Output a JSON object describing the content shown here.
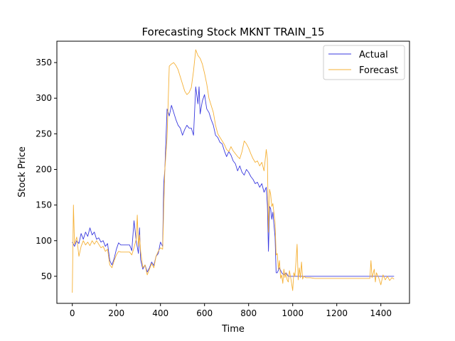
{
  "chart_data": {
    "type": "line",
    "title": "Forecasting Stock MKNT TRAIN_15",
    "xlabel": "Time",
    "ylabel": "Stock Price",
    "xlim": [
      -70,
      1530
    ],
    "ylim": [
      12,
      380
    ],
    "xticks": [
      0,
      200,
      400,
      600,
      800,
      1000,
      1200,
      1400
    ],
    "yticks": [
      50,
      100,
      150,
      200,
      250,
      300,
      350
    ],
    "grid": false,
    "legend_position": "top-right",
    "series": [
      {
        "name": "Actual",
        "color": "#3a3adf",
        "points": [
          [
            0,
            98
          ],
          [
            10,
            92
          ],
          [
            20,
            100
          ],
          [
            30,
            96
          ],
          [
            40,
            110
          ],
          [
            50,
            102
          ],
          [
            60,
            112
          ],
          [
            70,
            106
          ],
          [
            80,
            118
          ],
          [
            90,
            108
          ],
          [
            100,
            112
          ],
          [
            110,
            102
          ],
          [
            120,
            104
          ],
          [
            130,
            98
          ],
          [
            140,
            100
          ],
          [
            150,
            92
          ],
          [
            160,
            96
          ],
          [
            170,
            72
          ],
          [
            180,
            66
          ],
          [
            190,
            75
          ],
          [
            200,
            88
          ],
          [
            210,
            97
          ],
          [
            220,
            94
          ],
          [
            240,
            94
          ],
          [
            260,
            94
          ],
          [
            270,
            86
          ],
          [
            280,
            128
          ],
          [
            290,
            100
          ],
          [
            300,
            82
          ],
          [
            305,
            118
          ],
          [
            310,
            73
          ],
          [
            320,
            60
          ],
          [
            330,
            66
          ],
          [
            340,
            56
          ],
          [
            350,
            62
          ],
          [
            360,
            70
          ],
          [
            370,
            65
          ],
          [
            380,
            78
          ],
          [
            390,
            82
          ],
          [
            400,
            98
          ],
          [
            410,
            92
          ],
          [
            415,
            180
          ],
          [
            420,
            200
          ],
          [
            430,
            285
          ],
          [
            440,
            275
          ],
          [
            450,
            290
          ],
          [
            460,
            280
          ],
          [
            470,
            270
          ],
          [
            480,
            262
          ],
          [
            490,
            258
          ],
          [
            500,
            248
          ],
          [
            510,
            256
          ],
          [
            520,
            262
          ],
          [
            530,
            258
          ],
          [
            540,
            258
          ],
          [
            550,
            248
          ],
          [
            560,
            316
          ],
          [
            570,
            292
          ],
          [
            575,
            316
          ],
          [
            580,
            278
          ],
          [
            590,
            296
          ],
          [
            600,
            305
          ],
          [
            610,
            285
          ],
          [
            620,
            280
          ],
          [
            630,
            270
          ],
          [
            640,
            262
          ],
          [
            650,
            248
          ],
          [
            660,
            245
          ],
          [
            670,
            238
          ],
          [
            680,
            236
          ],
          [
            690,
            226
          ],
          [
            700,
            218
          ],
          [
            710,
            225
          ],
          [
            720,
            220
          ],
          [
            730,
            212
          ],
          [
            740,
            208
          ],
          [
            750,
            198
          ],
          [
            760,
            205
          ],
          [
            770,
            196
          ],
          [
            780,
            192
          ],
          [
            790,
            200
          ],
          [
            800,
            196
          ],
          [
            810,
            190
          ],
          [
            820,
            186
          ],
          [
            830,
            180
          ],
          [
            840,
            182
          ],
          [
            850,
            175
          ],
          [
            860,
            180
          ],
          [
            870,
            168
          ],
          [
            880,
            175
          ],
          [
            885,
            150
          ],
          [
            890,
            85
          ],
          [
            895,
            148
          ],
          [
            900,
            145
          ],
          [
            905,
            130
          ],
          [
            910,
            140
          ],
          [
            920,
            105
          ],
          [
            925,
            55
          ],
          [
            930,
            55
          ],
          [
            940,
            62
          ],
          [
            950,
            55
          ],
          [
            960,
            52
          ],
          [
            970,
            55
          ],
          [
            980,
            50
          ],
          [
            1000,
            50
          ],
          [
            1100,
            50
          ],
          [
            1200,
            50
          ],
          [
            1300,
            50
          ],
          [
            1400,
            50
          ],
          [
            1460,
            50
          ]
        ]
      },
      {
        "name": "Forecast",
        "color": "#f5b035",
        "points": [
          [
            0,
            27
          ],
          [
            5,
            150
          ],
          [
            10,
            95
          ],
          [
            20,
            105
          ],
          [
            30,
            78
          ],
          [
            40,
            92
          ],
          [
            50,
            100
          ],
          [
            60,
            94
          ],
          [
            70,
            98
          ],
          [
            80,
            93
          ],
          [
            90,
            100
          ],
          [
            100,
            95
          ],
          [
            110,
            100
          ],
          [
            120,
            95
          ],
          [
            130,
            90
          ],
          [
            140,
            92
          ],
          [
            150,
            85
          ],
          [
            160,
            88
          ],
          [
            170,
            66
          ],
          [
            180,
            62
          ],
          [
            190,
            72
          ],
          [
            200,
            80
          ],
          [
            210,
            85
          ],
          [
            220,
            84
          ],
          [
            240,
            84
          ],
          [
            260,
            84
          ],
          [
            270,
            80
          ],
          [
            280,
            90
          ],
          [
            290,
            102
          ],
          [
            295,
            136
          ],
          [
            300,
            92
          ],
          [
            305,
            108
          ],
          [
            310,
            85
          ],
          [
            320,
            62
          ],
          [
            330,
            66
          ],
          [
            340,
            52
          ],
          [
            350,
            60
          ],
          [
            360,
            68
          ],
          [
            370,
            62
          ],
          [
            380,
            78
          ],
          [
            390,
            85
          ],
          [
            400,
            90
          ],
          [
            410,
            88
          ],
          [
            415,
            145
          ],
          [
            420,
            200
          ],
          [
            430,
            245
          ],
          [
            440,
            345
          ],
          [
            450,
            348
          ],
          [
            460,
            350
          ],
          [
            470,
            346
          ],
          [
            480,
            340
          ],
          [
            490,
            330
          ],
          [
            500,
            320
          ],
          [
            510,
            310
          ],
          [
            520,
            305
          ],
          [
            530,
            308
          ],
          [
            540,
            315
          ],
          [
            550,
            338
          ],
          [
            560,
            368
          ],
          [
            570,
            360
          ],
          [
            580,
            356
          ],
          [
            590,
            348
          ],
          [
            600,
            335
          ],
          [
            610,
            320
          ],
          [
            620,
            300
          ],
          [
            630,
            290
          ],
          [
            640,
            280
          ],
          [
            650,
            262
          ],
          [
            660,
            250
          ],
          [
            670,
            245
          ],
          [
            680,
            240
          ],
          [
            690,
            235
          ],
          [
            700,
            228
          ],
          [
            710,
            225
          ],
          [
            720,
            232
          ],
          [
            730,
            226
          ],
          [
            740,
            222
          ],
          [
            750,
            218
          ],
          [
            760,
            215
          ],
          [
            770,
            225
          ],
          [
            780,
            240
          ],
          [
            790,
            236
          ],
          [
            800,
            230
          ],
          [
            810,
            222
          ],
          [
            820,
            215
          ],
          [
            830,
            210
          ],
          [
            840,
            212
          ],
          [
            850,
            205
          ],
          [
            860,
            210
          ],
          [
            870,
            198
          ],
          [
            880,
            228
          ],
          [
            885,
            215
          ],
          [
            890,
            112
          ],
          [
            895,
            172
          ],
          [
            900,
            165
          ],
          [
            905,
            148
          ],
          [
            910,
            152
          ],
          [
            920,
            125
          ],
          [
            925,
            80
          ],
          [
            930,
            82
          ],
          [
            935,
            60
          ],
          [
            940,
            72
          ],
          [
            945,
            47
          ],
          [
            950,
            52
          ],
          [
            955,
            40
          ],
          [
            960,
            60
          ],
          [
            965,
            48
          ],
          [
            970,
            55
          ],
          [
            975,
            45
          ],
          [
            980,
            42
          ],
          [
            985,
            58
          ],
          [
            990,
            50
          ],
          [
            995,
            40
          ],
          [
            1000,
            30
          ],
          [
            1005,
            55
          ],
          [
            1010,
            50
          ],
          [
            1015,
            70
          ],
          [
            1020,
            95
          ],
          [
            1025,
            45
          ],
          [
            1030,
            62
          ],
          [
            1035,
            48
          ],
          [
            1040,
            70
          ],
          [
            1045,
            46
          ],
          [
            1050,
            50
          ],
          [
            1060,
            48
          ],
          [
            1080,
            48
          ],
          [
            1100,
            47
          ],
          [
            1200,
            47
          ],
          [
            1300,
            47
          ],
          [
            1350,
            47
          ],
          [
            1355,
            72
          ],
          [
            1360,
            48
          ],
          [
            1370,
            60
          ],
          [
            1375,
            42
          ],
          [
            1380,
            55
          ],
          [
            1390,
            48
          ],
          [
            1400,
            38
          ],
          [
            1410,
            52
          ],
          [
            1420,
            45
          ],
          [
            1430,
            50
          ],
          [
            1440,
            44
          ],
          [
            1450,
            48
          ],
          [
            1460,
            46
          ]
        ]
      }
    ]
  }
}
